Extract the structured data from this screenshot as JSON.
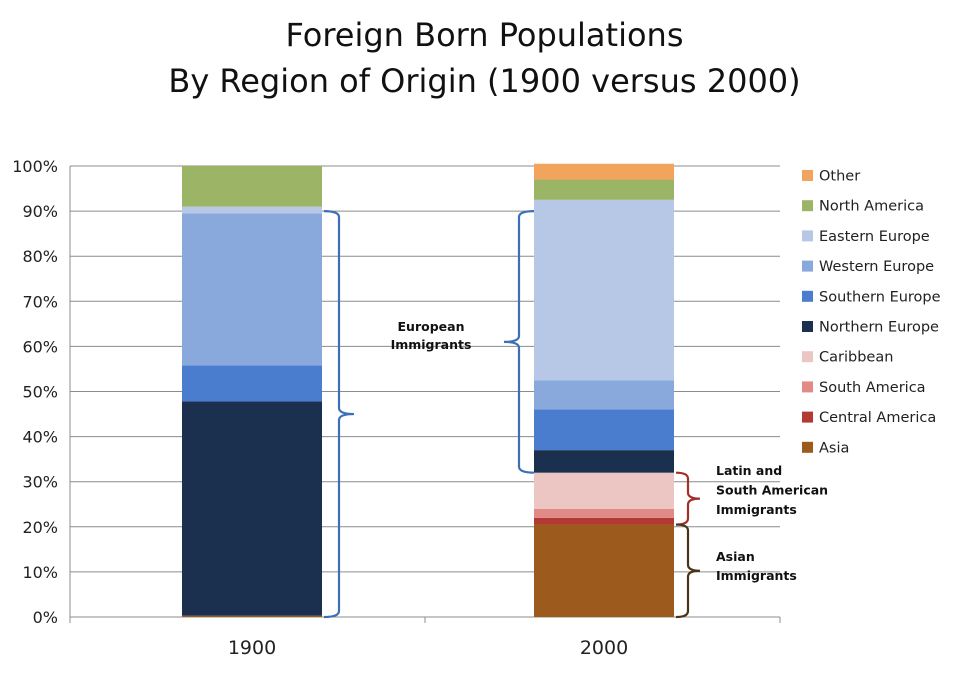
{
  "chart_data": {
    "type": "bar",
    "stacked": true,
    "title": [
      "Foreign Born Populations",
      "By Region of Origin (1900 versus 2000)"
    ],
    "xlabel": "",
    "ylabel": "",
    "ylim": [
      0,
      100
    ],
    "y_ticks": [
      "0%",
      "10%",
      "20%",
      "30%",
      "40%",
      "50%",
      "60%",
      "70%",
      "80%",
      "90%",
      "100%"
    ],
    "grid": true,
    "legend_position": "right",
    "categories": [
      "1900",
      "2000"
    ],
    "series": [
      {
        "name": "Asia",
        "color": "#9c5a1c",
        "values": [
          0.3,
          20.5
        ]
      },
      {
        "name": "Central America",
        "color": "#b23a35",
        "values": [
          0,
          1.5
        ]
      },
      {
        "name": "South America",
        "color": "#e28a86",
        "values": [
          0,
          2.0
        ]
      },
      {
        "name": "Caribbean",
        "color": "#ecc6c2",
        "values": [
          0,
          8.0
        ]
      },
      {
        "name": "Northern Europe",
        "color": "#1b2f4f",
        "values": [
          47.5,
          5.0
        ]
      },
      {
        "name": "Southern Europe",
        "color": "#4a7dcd",
        "values": [
          8.0,
          9.0
        ]
      },
      {
        "name": "Western Europe",
        "color": "#89a8dc",
        "values": [
          33.7,
          6.5
        ]
      },
      {
        "name": "Eastern Europe",
        "color": "#b7c7e6",
        "values": [
          1.5,
          40.0
        ]
      },
      {
        "name": "North America",
        "color": "#9bb466",
        "values": [
          9.0,
          4.5
        ]
      },
      {
        "name": "Other",
        "color": "#f2a45c",
        "values": [
          0,
          3.5
        ]
      }
    ],
    "annotations": [
      {
        "lines": [
          "European",
          "Immigrants"
        ],
        "color": "#3d6fb6",
        "ranges": [
          [
            0,
            90
          ],
          [
            32,
            90
          ]
        ]
      },
      {
        "lines": [
          "Latin and",
          "South American",
          "Immigrants"
        ],
        "color": "#a13128",
        "ranges": [
          [
            20.5,
            32
          ]
        ]
      },
      {
        "lines": [
          "Asian",
          "Immigrants"
        ],
        "color": "#4a3316",
        "ranges": [
          [
            0,
            20.5
          ]
        ]
      }
    ]
  }
}
